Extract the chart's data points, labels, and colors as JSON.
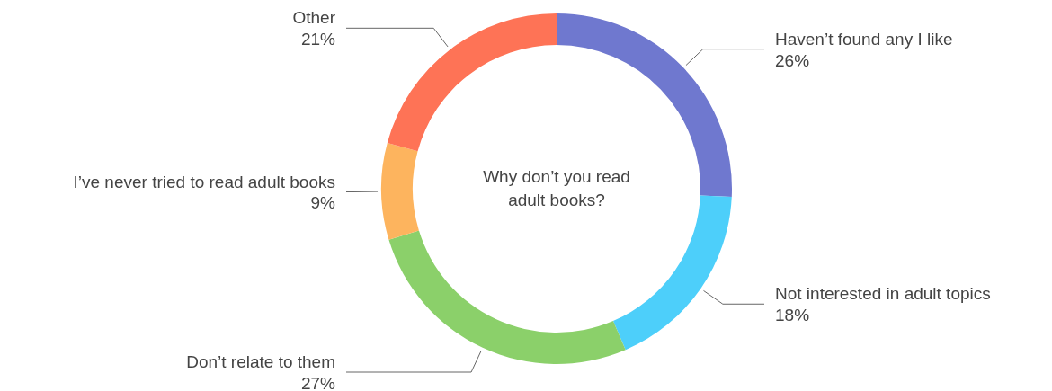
{
  "chart_data": {
    "type": "donut",
    "title": "Why don’t you read adult books?",
    "categories": [
      "Haven’t found any I like",
      "Not interested in adult topics",
      "Don’t relate to them",
      "I’ve never tried to read adult books",
      "Other"
    ],
    "values": [
      26,
      18,
      27,
      9,
      21
    ],
    "colors": [
      "#6f78cf",
      "#4dcffa",
      "#8bd06a",
      "#fdb45e",
      "#fe7356"
    ],
    "value_labels": [
      "26%",
      "18%",
      "27%",
      "9%",
      "21%"
    ]
  }
}
